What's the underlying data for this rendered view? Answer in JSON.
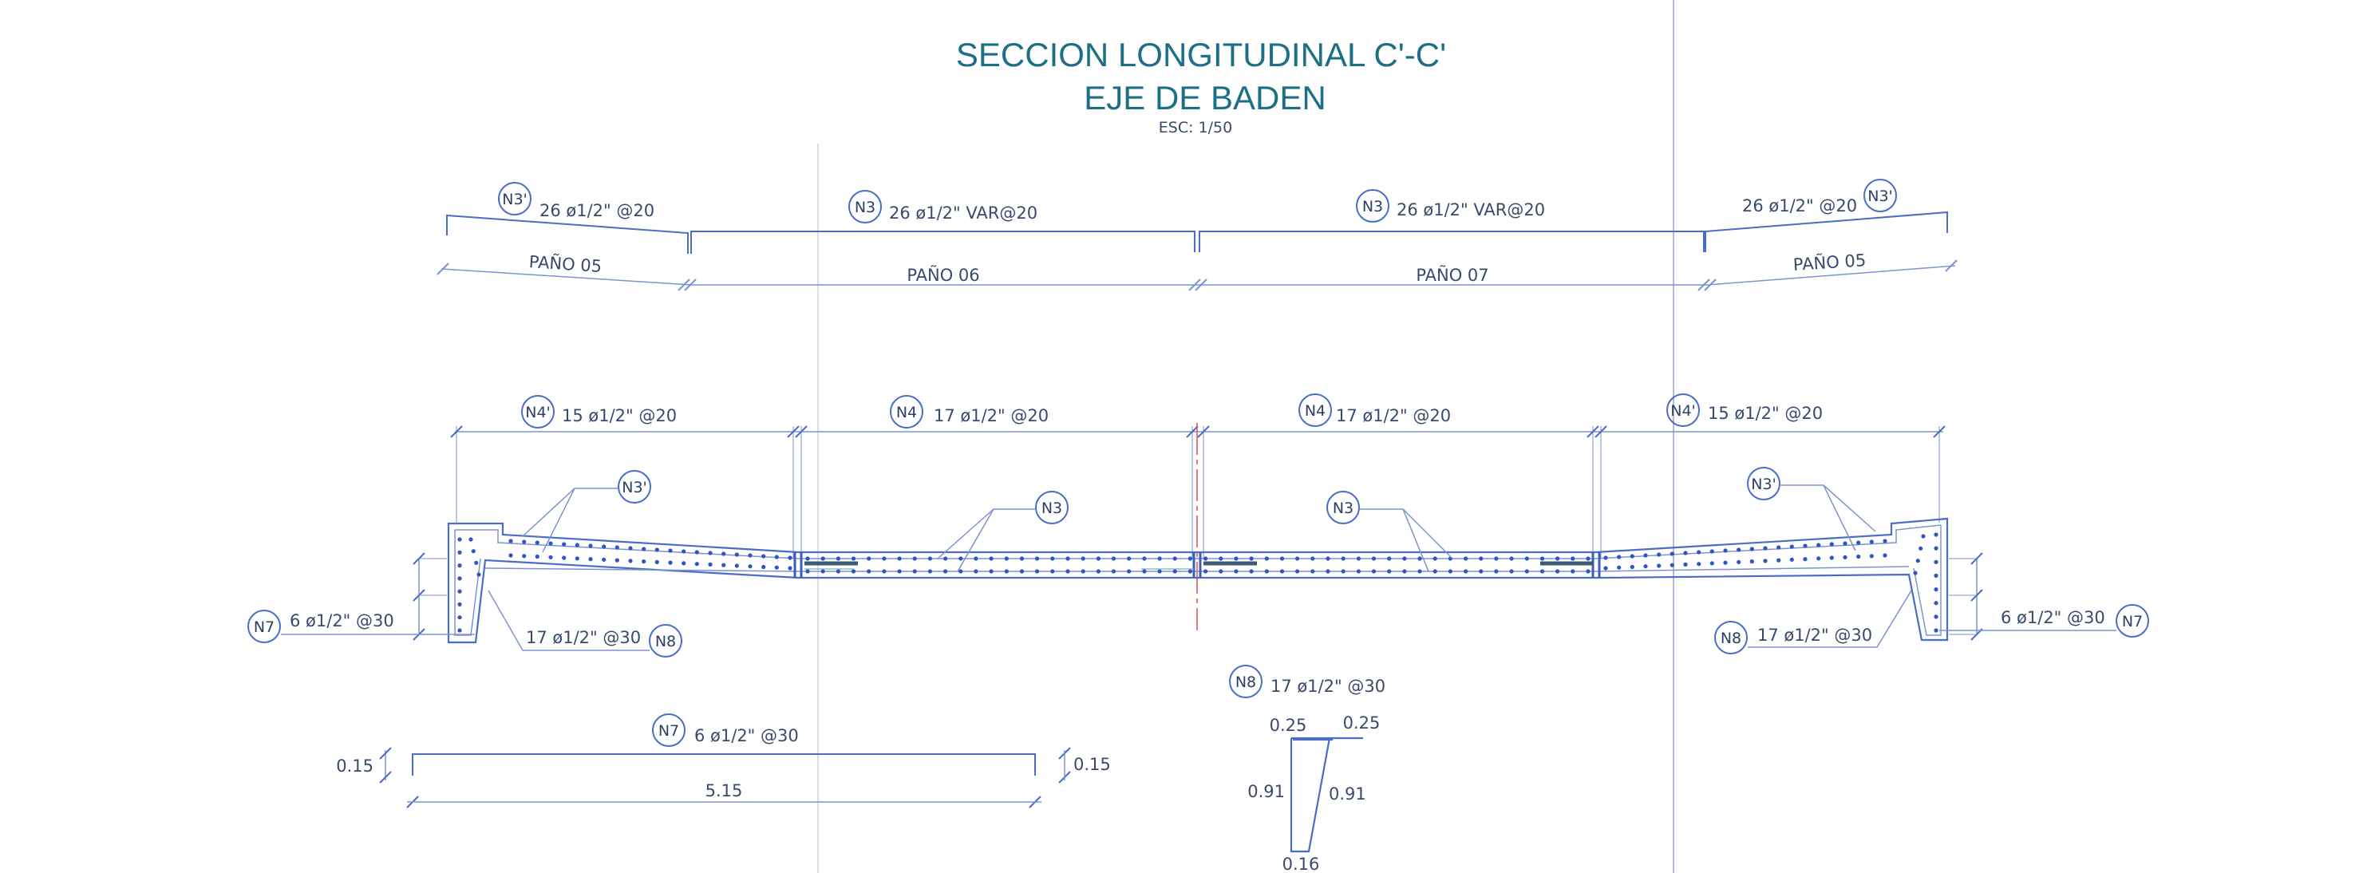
{
  "title": "SECCION LONGITUDINAL C'-C'",
  "subtitle": "EJE DE BADEN",
  "scale": "ESC: 1/50",
  "colors": {
    "ink": "#4b6dc4",
    "text": "#3a4a6e",
    "title": "#1d6f86",
    "axis": "#e05050"
  },
  "top_bars": [
    {
      "tag": "N3'",
      "spec": "26 ø1/2\" @20",
      "panel": "PAÑO 05"
    },
    {
      "tag": "N3",
      "spec": "26 ø1/2\" VAR@20",
      "panel": "PAÑO 06"
    },
    {
      "tag": "N3",
      "spec": "26 ø1/2\" VAR@20",
      "panel": "PAÑO 07"
    },
    {
      "tag": "N3'",
      "spec": "26 ø1/2\" @20",
      "panel": "PAÑO 05"
    }
  ],
  "bottom_bars": [
    {
      "tag": "N4'",
      "spec": "15 ø1/2\" @20"
    },
    {
      "tag": "N4",
      "spec": "17 ø1/2\" @20"
    },
    {
      "tag": "N4",
      "spec": "17 ø1/2\" @20"
    },
    {
      "tag": "N4'",
      "spec": "15 ø1/2\" @20"
    }
  ],
  "section_tags": {
    "left_top": "N3'",
    "mid_left": "N3",
    "mid_right": "N3",
    "right_top": "N3'"
  },
  "side_left": {
    "n7_tag": "N7",
    "n7_spec": "6 ø1/2\" @30",
    "n8_spec": "17 ø1/2\" @30",
    "n8_tag": "N8"
  },
  "side_right": {
    "n8_tag": "N8",
    "n8_spec": "17 ø1/2\" @30",
    "n7_spec": "6 ø1/2\" @30",
    "n7_tag": "N7"
  },
  "detail_n7": {
    "tag": "N7",
    "spec": "6 ø1/2\" @30",
    "left_h": "0.15",
    "right_h": "0.15",
    "length": "5.15"
  },
  "detail_n8": {
    "tag": "N8",
    "spec": "17 ø1/2\" @30",
    "top_left": "0.25",
    "top_right": "0.25",
    "left_v": "0.91",
    "right_v": "0.91",
    "bottom": "0.16"
  }
}
